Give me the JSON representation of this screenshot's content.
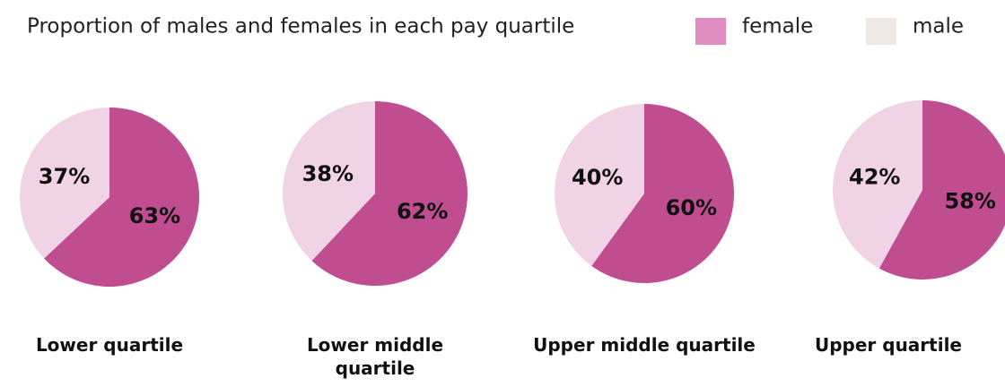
{
  "title": "Proportion of males and females in each pay quartile",
  "legend": {
    "names": [
      "female",
      "male"
    ],
    "colors": [
      "#e08cc0",
      "#efe9e6"
    ]
  },
  "chart_data": [
    {
      "type": "pie",
      "title": "Lower quartile",
      "categories": [
        "female",
        "male"
      ],
      "values": [
        63,
        37
      ],
      "value_labels": [
        "63%",
        "37%"
      ],
      "colors": [
        "#c04d90",
        "#f0d4e6"
      ]
    },
    {
      "type": "pie",
      "title": "Lower middle quartile",
      "categories": [
        "female",
        "male"
      ],
      "values": [
        62,
        38
      ],
      "value_labels": [
        "62%",
        "38%"
      ],
      "colors": [
        "#c04d90",
        "#f0d4e6"
      ]
    },
    {
      "type": "pie",
      "title": "Upper middle quartile",
      "categories": [
        "female",
        "male"
      ],
      "values": [
        60,
        40
      ],
      "value_labels": [
        "60%",
        "40%"
      ],
      "colors": [
        "#c04d90",
        "#f0d4e6"
      ]
    },
    {
      "type": "pie",
      "title": "Upper quartile",
      "categories": [
        "female",
        "male"
      ],
      "values": [
        58,
        42
      ],
      "value_labels": [
        "58%",
        "42%"
      ],
      "colors": [
        "#c04d90",
        "#f0d4e6"
      ]
    }
  ]
}
